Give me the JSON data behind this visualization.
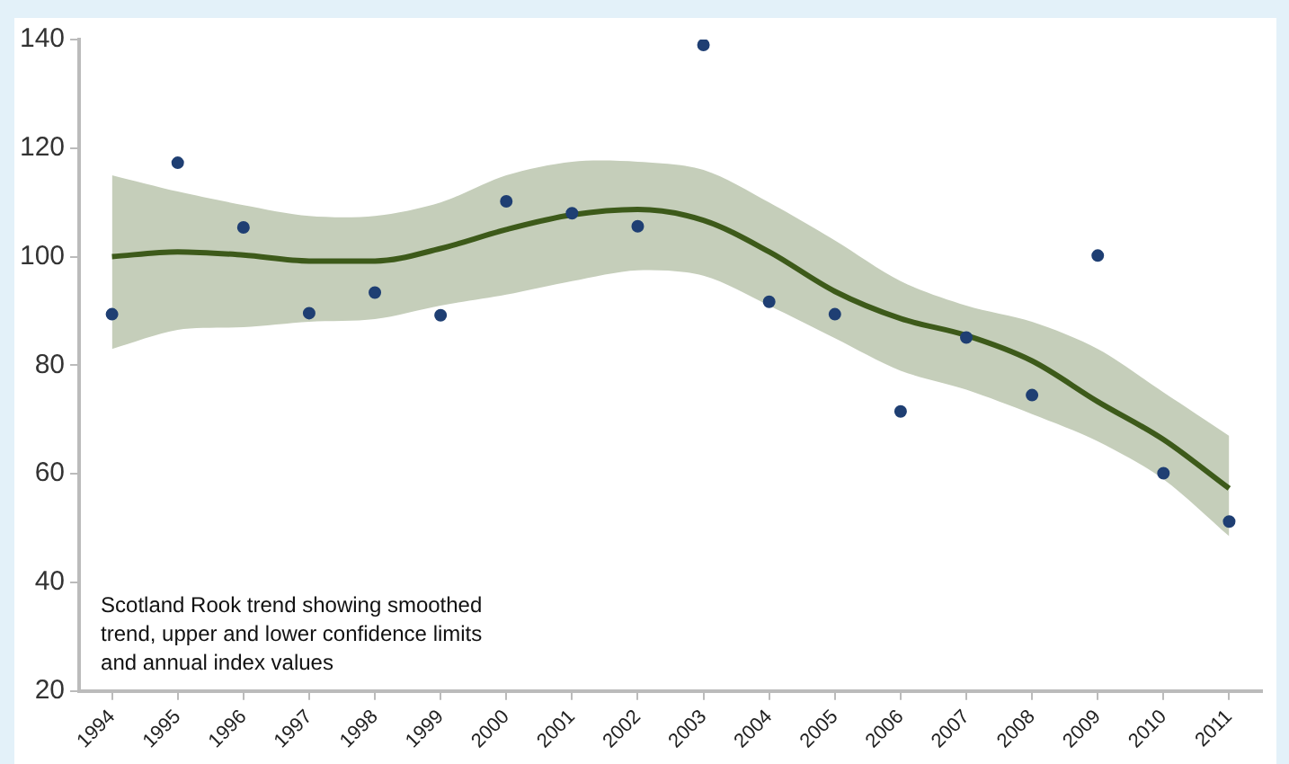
{
  "chart_data": {
    "type": "line",
    "categories": [
      "1994",
      "1995",
      "1996",
      "1997",
      "1998",
      "1999",
      "2000",
      "2001",
      "2002",
      "2003",
      "2004",
      "2005",
      "2006",
      "2007",
      "2008",
      "2009",
      "2010",
      "2011"
    ],
    "series": [
      {
        "color": "#3d5a1a",
        "values": [
          100,
          100.9,
          100.3,
          99.2,
          99.2,
          101.5,
          105,
          107.7,
          108.7,
          106.7,
          100.9,
          93.6,
          88.6,
          85.5,
          80.8,
          73.3,
          66.3,
          57.3
        ],
        "lower": [
          83,
          86.5,
          87,
          88,
          88.5,
          91,
          93,
          95.5,
          97.5,
          96.5,
          91,
          85,
          79,
          75.5,
          71,
          66,
          59,
          48.5
        ],
        "upper": [
          115,
          112,
          109.5,
          107.5,
          107.5,
          110,
          115,
          117.5,
          117.5,
          116,
          110,
          103,
          95.5,
          91,
          88,
          83,
          75,
          67
        ]
      },
      {
        "type": "scatter",
        "color": "#1f3f73",
        "marker": "circle",
        "values": [
          89.4,
          117.3,
          105.4,
          89.6,
          93.4,
          89.2,
          110.2,
          108,
          105.6,
          139,
          91.7,
          89.4,
          71.5,
          85.1,
          74.5,
          100.2,
          60.1,
          51.2
        ]
      }
    ],
    "ylim": [
      20,
      140
    ],
    "yticks": [
      20,
      40,
      60,
      80,
      100,
      120,
      140
    ],
    "grid": false,
    "legend": false,
    "annotations": [
      "Scotland Rook trend showing smoothed trend, upper and lower confidence limits and annual index values"
    ]
  }
}
